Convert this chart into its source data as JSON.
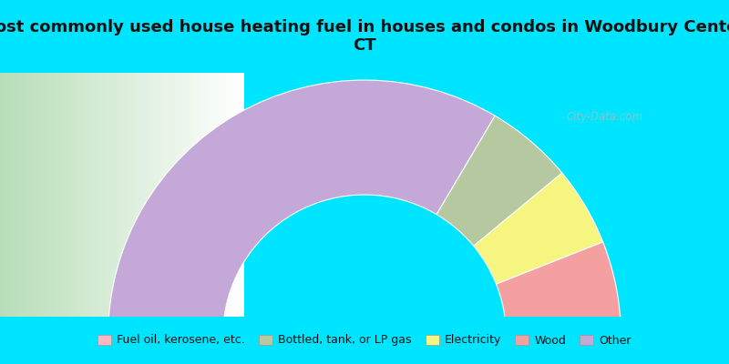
{
  "title": "Most commonly used house heating fuel in houses and condos in Woodbury Center,\nCT",
  "segments": [
    {
      "label": "Fuel oil, kerosene, etc.",
      "value": 2,
      "color": "#FFB6C1"
    },
    {
      "label": "Bottled, tank, or LP gas",
      "value": 11,
      "color": "#B5C8A0"
    },
    {
      "label": "Electricity",
      "value": 10,
      "color": "#F5F580"
    },
    {
      "label": "Wood",
      "value": 10,
      "color": "#F4A0A0"
    },
    {
      "label": "Other",
      "value": 67,
      "color": "#C4A8D8"
    }
  ],
  "bg_color_title": "#00E5FF",
  "bg_color_legend": "#00E5FF",
  "title_color": "#111111",
  "legend_color": "#111111",
  "watermark": "City-Data.com",
  "chart_bg_left": "#b8ddb8",
  "chart_bg_right": "#ffffff",
  "title_fontsize": 13,
  "legend_fontsize": 9,
  "order": [
    4,
    1,
    2,
    3,
    0
  ]
}
